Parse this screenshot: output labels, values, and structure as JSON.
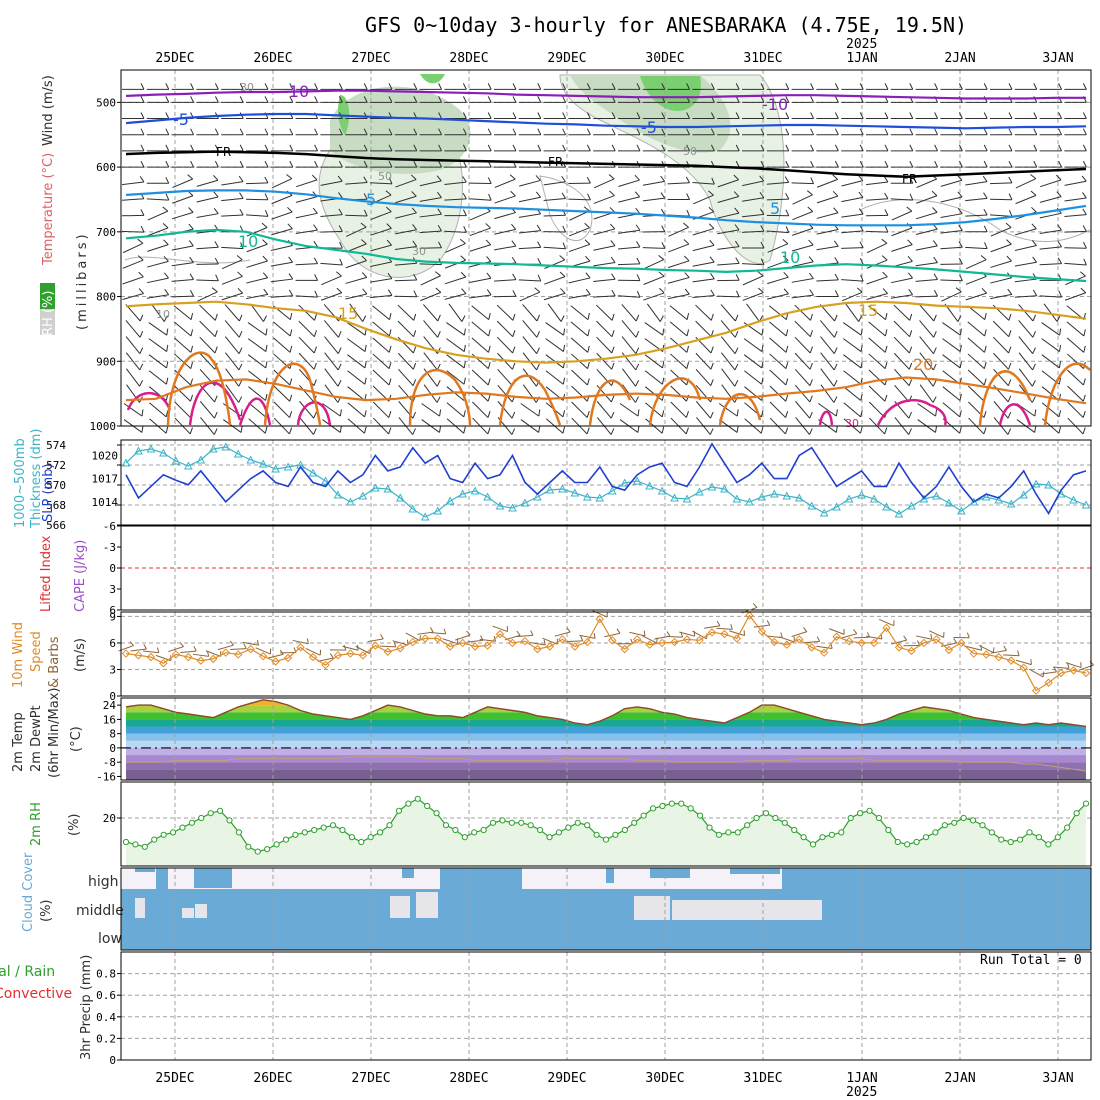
{
  "colors": {
    "cyan": "#3cb4c8",
    "blue": "#1f3fd0",
    "orange": "#e08c28",
    "brown": "#8c6438",
    "green": "#2ea02e",
    "cloud": "#6aaad6",
    "cloud_light": "#e6e6ea",
    "red": "#e03030",
    "purple": "#9a50c8",
    "rh_fill": "#e8f4e4"
  },
  "chart_data": [
    {
      "type": "line",
      "title": "GFS 0~10day 3-hourly for ANESBARAKA (4.75E, 19.5N)",
      "date_labels": [
        "25DEC",
        "26DEC",
        "27DEC",
        "28DEC",
        "29DEC",
        "30DEC",
        "31DEC",
        "1JAN",
        "2JAN",
        "3JAN"
      ],
      "year_label": "2025",
      "yaxis_labels": [
        "Wind (m/s)",
        "Temperature (°C)",
        "RH (%)",
        "(millibars)"
      ],
      "ylim": [
        1000,
        450
      ],
      "yticks": [
        500,
        600,
        700,
        800,
        900,
        1000
      ],
      "temperature_contours": [
        {
          "label": "-10",
          "color": "#8a1fb8",
          "p": [
            490,
            488,
            487,
            485,
            484,
            484,
            483,
            482,
            482,
            483,
            484,
            485,
            486,
            488,
            489,
            490,
            491,
            492,
            492,
            492,
            491,
            490,
            489,
            489,
            490,
            491,
            492,
            493,
            494,
            494,
            494,
            493,
            493
          ]
        },
        {
          "label": "-5",
          "color": "#1f4fd8",
          "p": [
            532,
            528,
            524,
            521,
            519,
            518,
            518,
            520,
            522,
            524,
            525,
            527,
            529,
            531,
            533,
            534,
            536,
            537,
            538,
            538,
            537,
            536,
            535,
            535,
            536,
            537,
            538,
            539,
            540,
            539,
            538,
            538,
            537
          ]
        },
        {
          "label": "FR",
          "color": "#000000",
          "p": [
            580,
            578,
            577,
            576,
            577,
            578,
            580,
            583,
            586,
            588,
            589,
            590,
            591,
            592,
            593,
            594,
            595,
            596,
            597,
            598,
            600,
            602,
            605,
            608,
            611,
            613,
            615,
            613,
            611,
            609,
            607,
            605,
            603
          ]
        },
        {
          "label": "5",
          "color": "#1e90e0",
          "p": [
            643,
            640,
            637,
            636,
            636,
            638,
            642,
            648,
            653,
            657,
            660,
            662,
            663,
            664,
            666,
            668,
            670,
            672,
            675,
            678,
            682,
            685,
            687,
            689,
            690,
            690,
            690,
            688,
            685,
            680,
            674,
            667,
            660
          ]
        },
        {
          "label": "10",
          "color": "#10b894",
          "p": [
            710,
            706,
            700,
            697,
            700,
            712,
            722,
            728,
            734,
            742,
            746,
            748,
            749,
            750,
            752,
            754,
            756,
            757,
            759,
            760,
            762,
            760,
            756,
            752,
            750,
            752,
            755,
            758,
            762,
            766,
            770,
            773,
            776
          ]
        },
        {
          "label": "15",
          "color": "#d8a020",
          "p": [
            815,
            812,
            810,
            808,
            812,
            818,
            822,
            832,
            850,
            866,
            880,
            890,
            896,
            900,
            902,
            900,
            896,
            890,
            880,
            868,
            856,
            840,
            826,
            816,
            810,
            808,
            810,
            814,
            816,
            818,
            822,
            828,
            834
          ]
        },
        {
          "label": "20",
          "color": "#e07820",
          "p": [
            960,
            958,
            940,
            930,
            928,
            935,
            945,
            955,
            960,
            958,
            952,
            948,
            950,
            955,
            958,
            956,
            952,
            950,
            952,
            956,
            958,
            955,
            950,
            946,
            940,
            930,
            925,
            928,
            935,
            942,
            950,
            958,
            965
          ]
        }
      ],
      "contour_labels": [
        "30",
        "50",
        "30",
        "50",
        "10",
        "-10",
        "-5",
        "FR",
        "FR",
        "5",
        "10",
        "-10",
        "-5",
        "FR",
        "5",
        "10",
        "15",
        "15",
        "20",
        "30"
      ]
    },
    {
      "type": "line",
      "ylabels_left": [
        "1000~500mb",
        "Thickness (dm)"
      ],
      "ylabels_right": [
        "SLP (mb)"
      ],
      "ylim_thickness": [
        566,
        574.5
      ],
      "ylim_slp": [
        1011,
        1022
      ],
      "yticks_thickness": [
        566,
        568,
        570,
        572,
        574
      ],
      "yticks_slp": [
        1014,
        1017,
        1020
      ],
      "series": [
        {
          "name": "Thickness",
          "values": [
            572.2,
            573.4,
            573.6,
            573.2,
            572.4,
            571.9,
            572.5,
            573.6,
            573.8,
            573.1,
            572.5,
            572.1,
            571.6,
            571.8,
            572.0,
            571.2,
            570.4,
            569.0,
            568.3,
            568.9,
            569.7,
            569.6,
            568.7,
            567.6,
            566.8,
            567.4,
            568.4,
            569.1,
            569.4,
            568.8,
            567.9,
            567.7,
            568.2,
            568.8,
            569.5,
            569.6,
            569.2,
            568.8,
            568.7,
            569.4,
            570.2,
            570.4,
            569.9,
            569.4,
            568.7,
            568.6,
            569.3,
            569.8,
            569.6,
            568.6,
            568.3,
            568.8,
            569.1,
            568.9,
            568.7,
            567.9,
            567.2,
            567.8,
            568.6,
            569.0,
            568.6,
            567.8,
            567.1,
            567.9,
            568.6,
            568.9,
            568.2,
            567.4,
            568.3,
            568.8,
            568.5,
            568.1,
            569.0,
            570.1,
            570.0,
            569.1,
            568.5,
            568.0
          ]
        },
        {
          "name": "SLP",
          "values": [
            1017.5,
            1014.5,
            1016.0,
            1017.5,
            1016.8,
            1016.2,
            1018.0,
            1016.0,
            1014.0,
            1015.5,
            1017.0,
            1018.0,
            1016.5,
            1016.0,
            1018.5,
            1016.5,
            1016.0,
            1018.0,
            1016.5,
            1017.5,
            1020.0,
            1018.0,
            1018.5,
            1021.0,
            1019.0,
            1020.0,
            1017.0,
            1016.5,
            1019.0,
            1017.0,
            1017.5,
            1020.0,
            1016.5,
            1015.0,
            1016.5,
            1018.0,
            1016.5,
            1016.5,
            1018.5,
            1016.0,
            1015.5,
            1017.5,
            1018.5,
            1019.0,
            1016.5,
            1016.0,
            1018.5,
            1021.5,
            1019.0,
            1016.5,
            1017.5,
            1019.0,
            1017.0,
            1017.0,
            1020.0,
            1021.0,
            1018.5,
            1016.0,
            1017.0,
            1018.0,
            1016.0,
            1016.0,
            1019.0,
            1016.5,
            1014.5,
            1016.0,
            1018.5,
            1016.0,
            1014.0,
            1015.0,
            1014.5,
            1016.0,
            1018.0,
            1015.0,
            1012.5,
            1015.5,
            1017.5,
            1018.0
          ]
        }
      ]
    },
    {
      "type": "line",
      "ylabels": [
        "Lifted Index",
        "CAPE (J/kg)"
      ],
      "ylim": [
        6,
        -6
      ],
      "yticks": [
        -6,
        -3,
        0,
        3,
        6
      ],
      "reference_line": 0
    },
    {
      "type": "line",
      "ylabels": [
        "10m Wind",
        "Speed",
        "& Barbs",
        "(m/s)"
      ],
      "ylim": [
        0,
        9.5
      ],
      "yticks": [
        0,
        3,
        6,
        9
      ],
      "series": [
        {
          "name": "Speed",
          "values": [
            4.8,
            4.6,
            4.4,
            3.7,
            4.7,
            4.4,
            4.0,
            4.2,
            4.9,
            4.7,
            5.3,
            4.5,
            3.9,
            4.3,
            5.5,
            4.4,
            3.5,
            4.6,
            4.8,
            4.6,
            5.7,
            5.0,
            5.4,
            6.1,
            6.5,
            6.5,
            5.6,
            6.0,
            5.6,
            5.7,
            7.0,
            6.0,
            6.2,
            5.3,
            5.6,
            6.4,
            5.6,
            6.1,
            8.7,
            6.3,
            5.3,
            6.4,
            5.8,
            6.0,
            6.1,
            6.4,
            6.3,
            7.2,
            7.0,
            6.5,
            9.1,
            7.3,
            6.1,
            5.8,
            6.4,
            5.5,
            4.9,
            6.7,
            6.2,
            6.0,
            6.0,
            7.7,
            5.5,
            5.1,
            6.0,
            6.4,
            5.2,
            6.0,
            4.8,
            4.7,
            4.4,
            4.0,
            3.2,
            0.6,
            1.5,
            2.6,
            2.9,
            2.6
          ]
        }
      ]
    },
    {
      "type": "area",
      "ylabels": [
        "2m Temp",
        "2m DewPt",
        "(6hr Min/Max)",
        "(°C)"
      ],
      "ylim": [
        -18,
        28
      ],
      "yticks": [
        -16,
        -8,
        0,
        8,
        16,
        24
      ],
      "series": [
        {
          "name": "Temp",
          "values": [
            23,
            24,
            24,
            22,
            20,
            19,
            18,
            17,
            20,
            23,
            25,
            27,
            26,
            24,
            21,
            19,
            18,
            17,
            16,
            18,
            21,
            24,
            23,
            21,
            19,
            18,
            18,
            17,
            20,
            23,
            22,
            21,
            20,
            18,
            17,
            16,
            14,
            13,
            15,
            18,
            22,
            23,
            22,
            20,
            19,
            17,
            16,
            15,
            14,
            17,
            20,
            24,
            24,
            22,
            20,
            18,
            16,
            15,
            14,
            13,
            14,
            16,
            19,
            21,
            23,
            22,
            21,
            19,
            17,
            16,
            15,
            14,
            13,
            14,
            13,
            14,
            13,
            12
          ]
        },
        {
          "name": "DewPt",
          "values": [
            -8,
            -8,
            -8,
            -8,
            -7,
            -7,
            -7,
            -7,
            -7,
            -6,
            -6,
            -6,
            -6,
            -6,
            -6,
            -6,
            -6,
            -6,
            -5,
            -5,
            -5,
            -5,
            -5,
            -5,
            -6,
            -6,
            -6,
            -6,
            -7,
            -7,
            -7,
            -7,
            -7,
            -7,
            -7,
            -6,
            -6,
            -6,
            -6,
            -6,
            -6,
            -7,
            -7,
            -7,
            -8,
            -8,
            -8,
            -8,
            -8,
            -8,
            -7,
            -7,
            -7,
            -7,
            -6,
            -6,
            -6,
            -6,
            -6,
            -6,
            -7,
            -7,
            -7,
            -7,
            -7,
            -7,
            -7,
            -8,
            -8,
            -8,
            -8,
            -8,
            -9,
            -9,
            -10,
            -11,
            -12,
            -13
          ]
        }
      ]
    },
    {
      "type": "area",
      "ylabels": [
        "2m RH",
        "(%)"
      ],
      "ylim": [
        0,
        35
      ],
      "yticks": [
        20
      ],
      "series": [
        {
          "name": "RH",
          "values": [
            10,
            9,
            8,
            11,
            13,
            14,
            16,
            18,
            20,
            22,
            23,
            19,
            14,
            8,
            6,
            7,
            9,
            11,
            13,
            14,
            15,
            16,
            17,
            15,
            12,
            10,
            12,
            14,
            17,
            23,
            26,
            28,
            25,
            22,
            17,
            15,
            12,
            14,
            15,
            18,
            19,
            18,
            18,
            17,
            15,
            12,
            14,
            16,
            18,
            17,
            13,
            11,
            13,
            15,
            18,
            21,
            24,
            25,
            26,
            26,
            24,
            21,
            16,
            13,
            14,
            14,
            17,
            20,
            22,
            20,
            18,
            15,
            12,
            9,
            12,
            13,
            14,
            20,
            22,
            23,
            20,
            15,
            10,
            9,
            10,
            12,
            14,
            17,
            18,
            20,
            19,
            17,
            14,
            11,
            10,
            11,
            14,
            12,
            9,
            12,
            16,
            22,
            26
          ]
        }
      ]
    },
    {
      "type": "heatmap",
      "ylabels": [
        "Cloud Cover",
        "(%)"
      ],
      "rows": [
        "high",
        "middle",
        "low"
      ]
    },
    {
      "type": "bar",
      "ylabels": [
        "3hr Precip (mm)",
        "Total / Rain",
        "Convective"
      ],
      "ylim": [
        0,
        1
      ],
      "yticks": [
        0,
        0.2,
        0.4,
        0.6,
        0.8
      ],
      "run_total_label": "Run Total = 0"
    }
  ]
}
